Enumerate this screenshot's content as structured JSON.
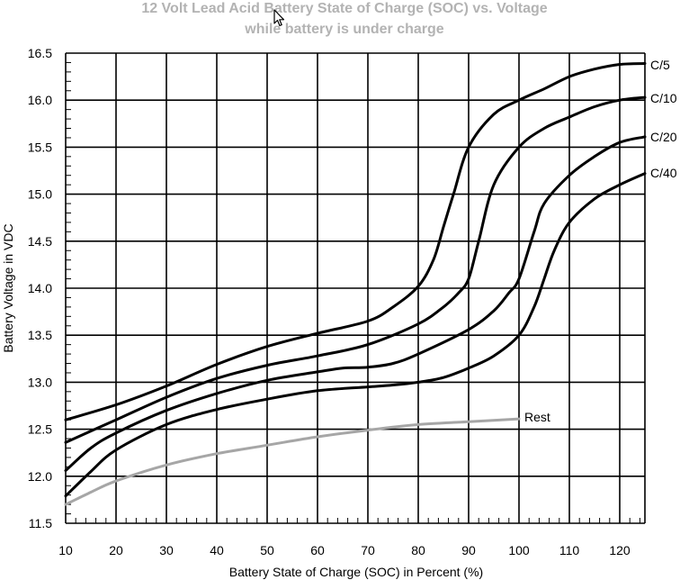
{
  "chart_data": {
    "type": "line",
    "title": "12 Volt Lead Acid Battery State of Charge (SOC) vs. Voltage",
    "subtitle": "while battery is under charge",
    "xlabel": "Battery State of Charge (SOC) in Percent (%)",
    "ylabel": "Battery Voltage in VDC",
    "xlim": [
      10,
      125
    ],
    "ylim": [
      11.5,
      16.5
    ],
    "x_ticks": [
      "10",
      "20",
      "30",
      "40",
      "50",
      "60",
      "70",
      "80",
      "90",
      "100",
      "110",
      "120"
    ],
    "y_ticks": [
      "11.5",
      "12.0",
      "12.5",
      "13.0",
      "13.5",
      "14.0",
      "14.5",
      "15.0",
      "15.5",
      "16.0",
      "16.5"
    ],
    "grid": true,
    "series": [
      {
        "name": "C/5",
        "color": "#000000",
        "x": [
          10,
          20,
          30,
          40,
          50,
          60,
          70,
          75,
          80,
          83,
          85,
          87,
          90,
          95,
          100,
          105,
          110,
          115,
          120,
          125
        ],
        "y": [
          12.6,
          12.76,
          12.96,
          13.19,
          13.38,
          13.52,
          13.65,
          13.8,
          14.02,
          14.3,
          14.65,
          15.0,
          15.5,
          15.85,
          16.0,
          16.12,
          16.25,
          16.33,
          16.38,
          16.39
        ]
      },
      {
        "name": "C/10",
        "color": "#000000",
        "x": [
          10,
          20,
          30,
          40,
          50,
          60,
          70,
          80,
          85,
          88,
          90,
          92,
          95,
          100,
          105,
          110,
          115,
          120,
          125
        ],
        "y": [
          12.36,
          12.6,
          12.84,
          13.04,
          13.18,
          13.28,
          13.4,
          13.62,
          13.8,
          13.95,
          14.1,
          14.5,
          15.1,
          15.5,
          15.7,
          15.82,
          15.93,
          16.0,
          16.03
        ]
      },
      {
        "name": "C/20",
        "color": "#000000",
        "x": [
          10,
          15,
          20,
          30,
          40,
          50,
          60,
          65,
          70,
          75,
          80,
          90,
          95,
          98,
          100,
          103,
          105,
          110,
          115,
          120,
          125
        ],
        "y": [
          12.06,
          12.3,
          12.46,
          12.7,
          12.88,
          13.02,
          13.11,
          13.15,
          13.16,
          13.2,
          13.3,
          13.56,
          13.76,
          13.95,
          14.1,
          14.6,
          14.9,
          15.2,
          15.4,
          15.55,
          15.61
        ]
      },
      {
        "name": "C/40",
        "color": "#000000",
        "x": [
          10,
          15,
          20,
          30,
          40,
          50,
          60,
          70,
          75,
          80,
          85,
          90,
          95,
          100,
          103,
          105,
          107,
          110,
          115,
          120,
          125
        ],
        "y": [
          11.79,
          12.05,
          12.28,
          12.55,
          12.71,
          12.82,
          12.91,
          12.95,
          12.97,
          13.0,
          13.05,
          13.15,
          13.28,
          13.5,
          13.8,
          14.1,
          14.4,
          14.7,
          14.95,
          15.1,
          15.22
        ]
      },
      {
        "name": "Rest",
        "color": "#a6a6a6",
        "x": [
          10,
          15,
          20,
          30,
          40,
          50,
          60,
          70,
          80,
          90,
          100
        ],
        "y": [
          11.7,
          11.83,
          11.95,
          12.12,
          12.24,
          12.33,
          12.42,
          12.49,
          12.55,
          12.58,
          12.61
        ]
      }
    ],
    "series_labels": [
      "C/5",
      "C/10",
      "C/20",
      "C/40",
      "Rest"
    ]
  },
  "icons": {
    "cursor": "mouse-pointer-icon"
  }
}
